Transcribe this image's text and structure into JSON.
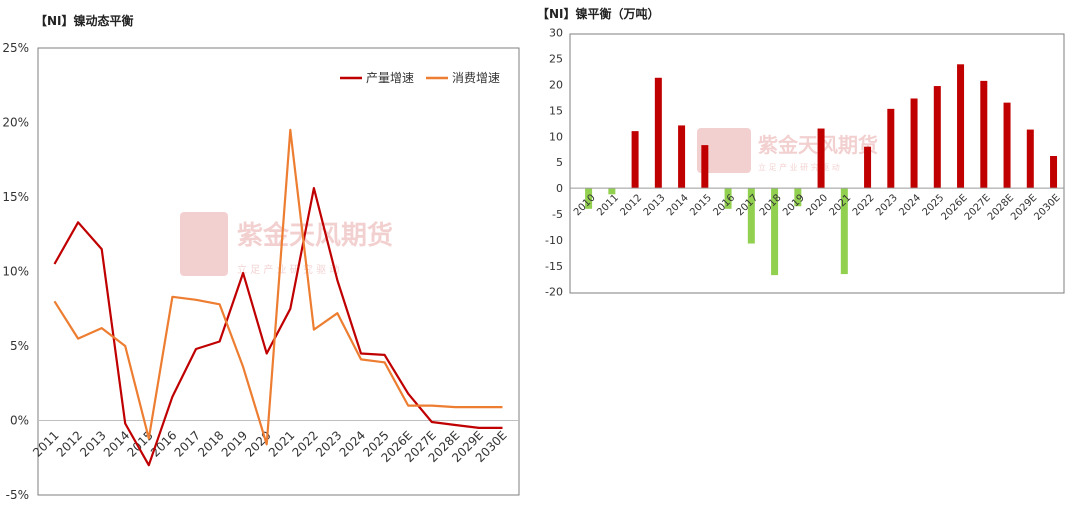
{
  "left_title": "【NI】镍动态平衡",
  "right_title": "【NI】镍平衡（万吨）",
  "watermark": {
    "main": "紫金天风期货",
    "sub": "立 足 产 业 研 究 驱 动"
  },
  "colors": {
    "production": "#c00000",
    "consumption": "#ed7d31",
    "positive": "#c00000",
    "negative": "#92d050"
  },
  "chart_data": [
    {
      "type": "line",
      "title": "",
      "categories": [
        "2011",
        "2012",
        "2013",
        "2014",
        "2015",
        "2016",
        "2017",
        "2018",
        "2019",
        "2020",
        "2021",
        "2022",
        "2023",
        "2024",
        "2025",
        "2026E",
        "2027E",
        "2028E",
        "2029E",
        "2030E"
      ],
      "series": [
        {
          "name": "产量增速",
          "values": [
            10.5,
            13.3,
            11.5,
            -0.2,
            -3.0,
            1.6,
            4.8,
            5.3,
            9.9,
            4.5,
            7.5,
            15.6,
            9.4,
            4.5,
            4.4,
            1.8,
            -0.1,
            -0.3,
            -0.5,
            -0.5
          ]
        },
        {
          "name": "消费增速",
          "values": [
            8.0,
            5.5,
            6.2,
            5.0,
            -1.2,
            8.3,
            8.1,
            7.8,
            3.6,
            -1.6,
            19.5,
            6.1,
            7.2,
            4.1,
            3.9,
            1.0,
            1.0,
            0.9,
            0.9,
            0.9
          ]
        }
      ],
      "y_ticks": [
        "25%",
        "20%",
        "15%",
        "10%",
        "5%",
        "0%",
        "-5%"
      ],
      "ylim": [
        -5,
        25
      ],
      "legend": "top-right"
    },
    {
      "type": "bar",
      "title": "",
      "categories": [
        "2010",
        "2011",
        "2012",
        "2013",
        "2014",
        "2015",
        "2016",
        "2017",
        "2018",
        "2019",
        "2020",
        "2021",
        "2022",
        "2023",
        "2024",
        "2025",
        "2026E",
        "2027E",
        "2028E",
        "2029E",
        "2030E"
      ],
      "values": [
        -4,
        -1.2,
        11,
        21.3,
        12.1,
        8.3,
        -4,
        -10.7,
        -16.8,
        -3.5,
        11.5,
        -16.6,
        8,
        15.3,
        17.3,
        19.7,
        23.9,
        20.7,
        16.5,
        11.3,
        6.2
      ],
      "y_ticks": [
        "30",
        "25",
        "20",
        "15",
        "10",
        "5",
        "0",
        "-5",
        "-10",
        "-15",
        "-20"
      ],
      "ylim": [
        -20,
        30
      ]
    }
  ]
}
